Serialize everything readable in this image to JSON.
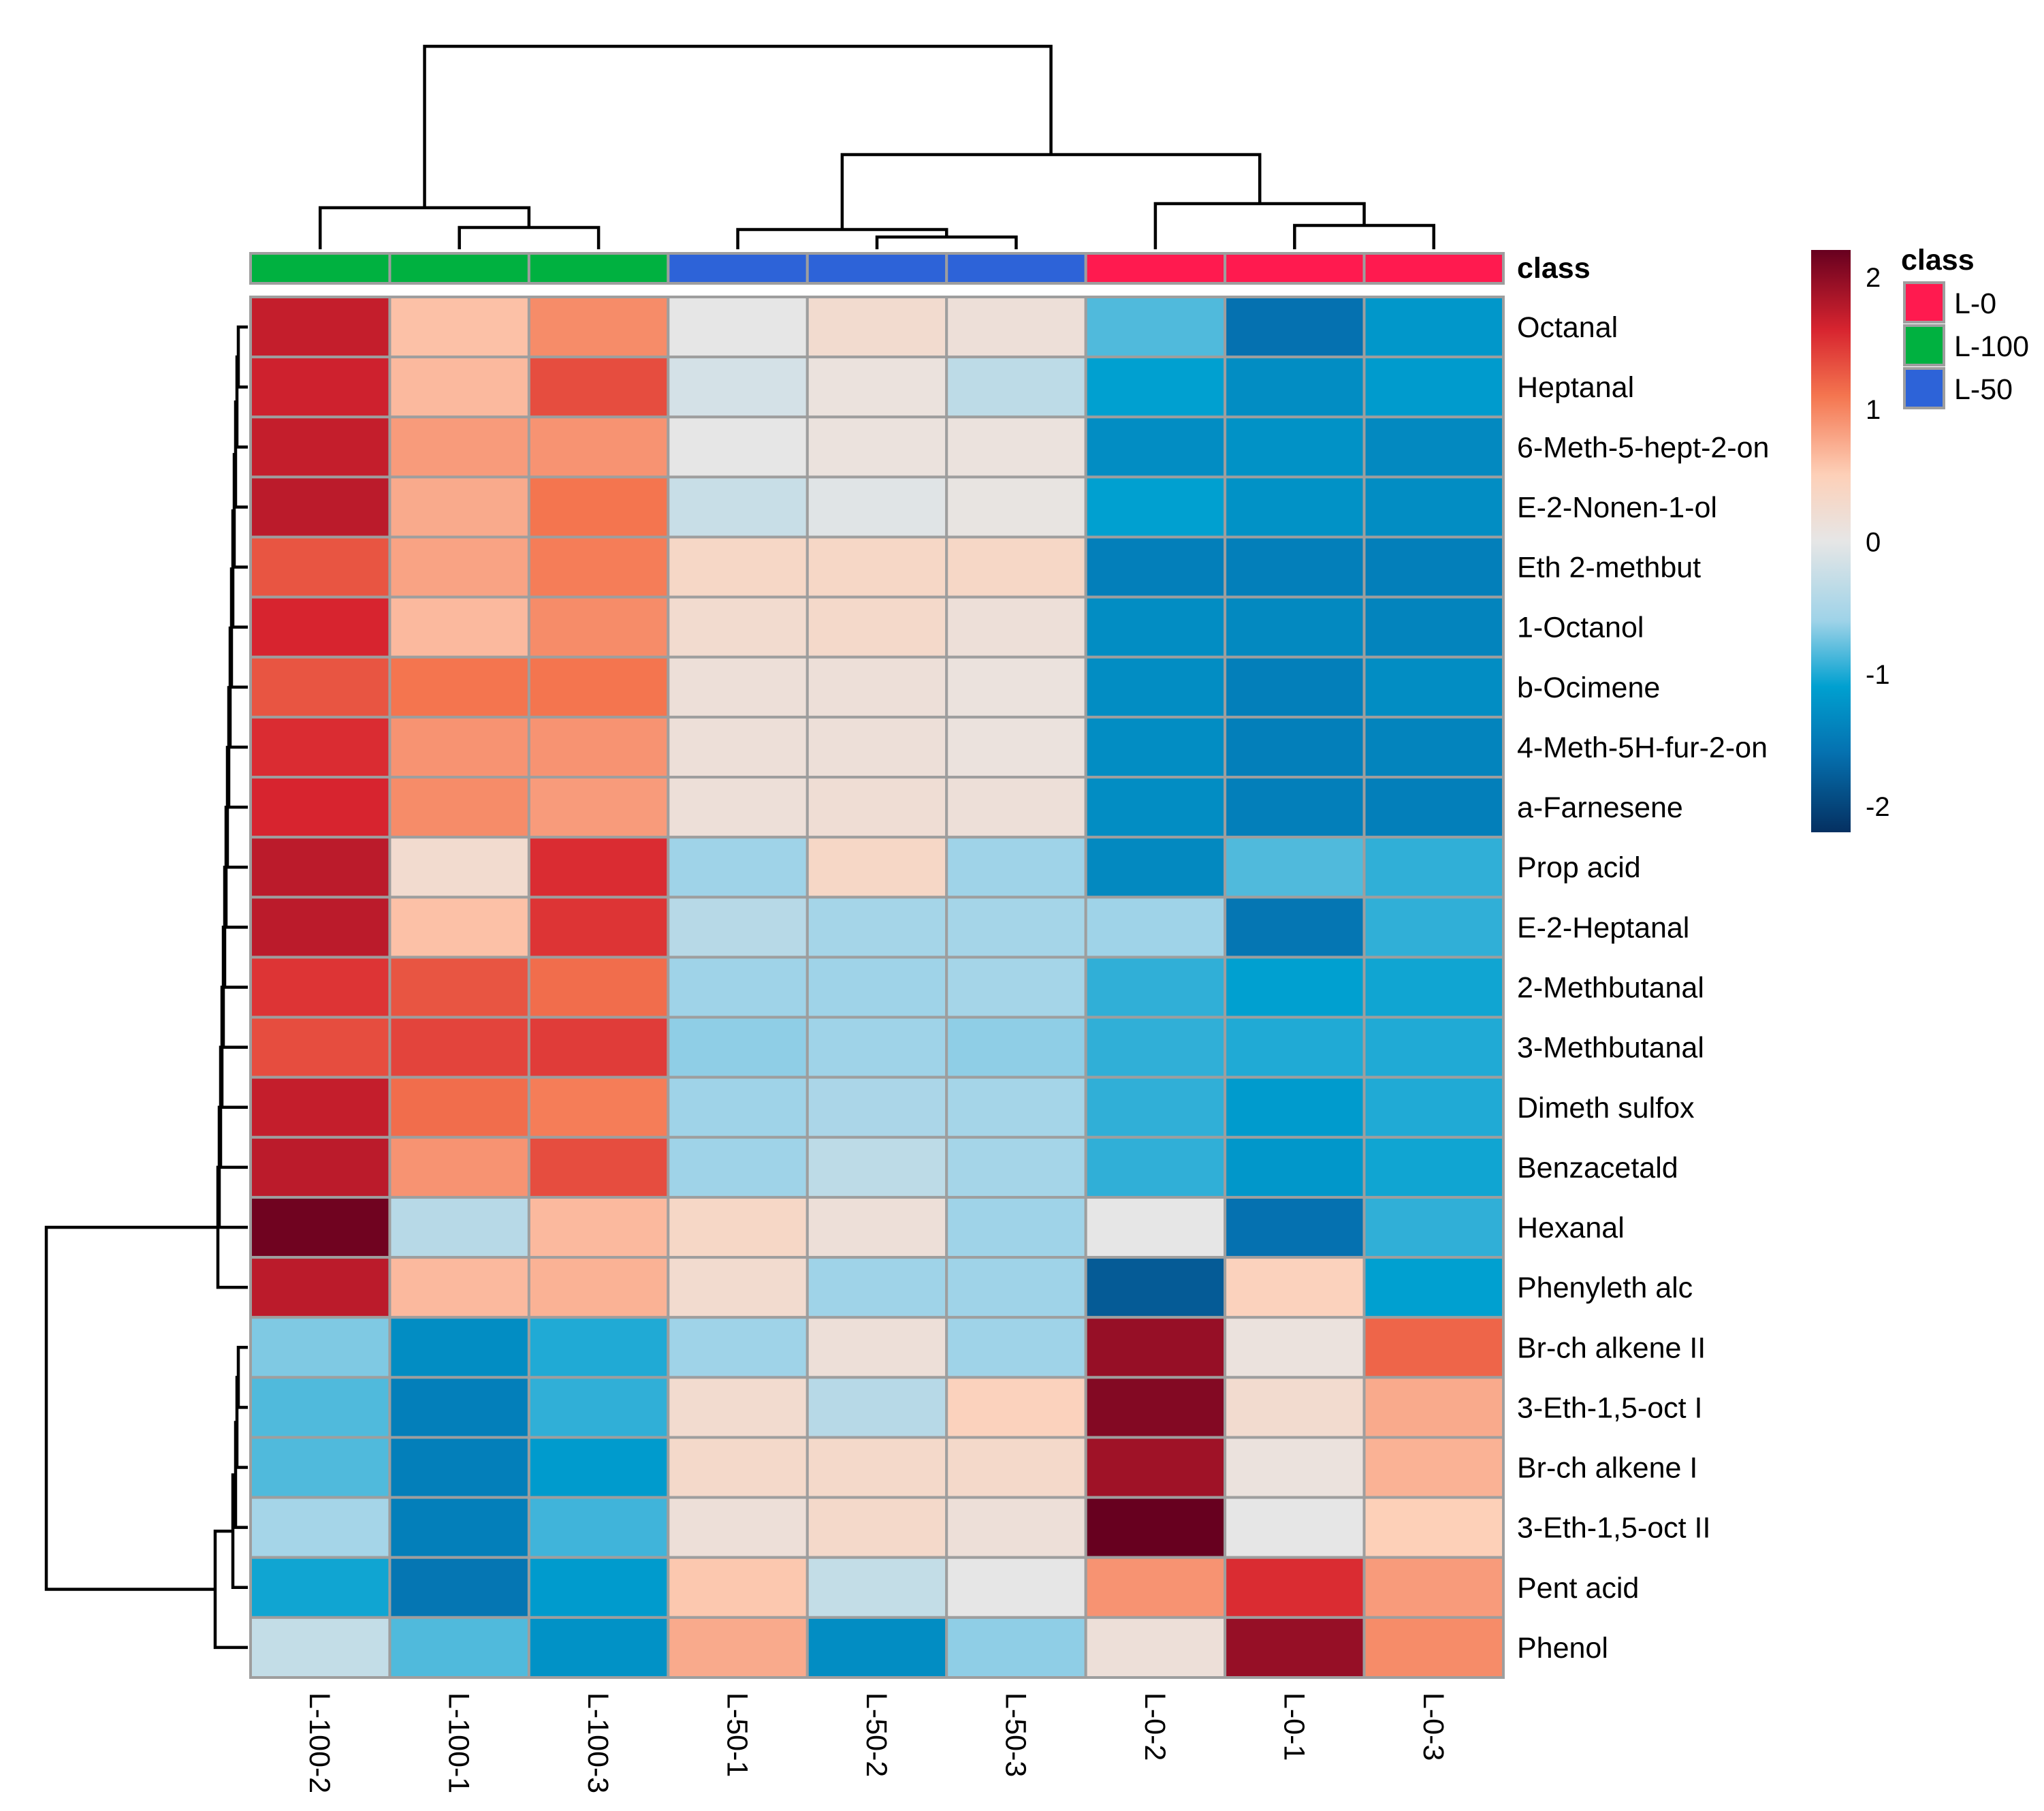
{
  "chart_data": {
    "type": "heatmap",
    "columns": [
      "L-100-2",
      "L-100-1",
      "L-100-3",
      "L-50-1",
      "L-50-2",
      "L-50-3",
      "L-0-2",
      "L-0-1",
      "L-0-3"
    ],
    "column_class": [
      "L-100",
      "L-100",
      "L-100",
      "L-50",
      "L-50",
      "L-50",
      "L-0",
      "L-0",
      "L-0"
    ],
    "rows": [
      "Octanal",
      "Heptanal",
      "6-Meth-5-hept-2-on",
      "E-2-Nonen-1-ol",
      "Eth 2-methbut",
      "1-Octanol",
      "b-Ocimene",
      "4-Meth-5H-fur-2-on",
      "a-Farnesene",
      "Prop acid",
      "E-2-Heptanal",
      "2-Methbutanal",
      "3-Methbutanal",
      "Dimeth sulfox",
      "Benzacetald",
      "Hexanal",
      "Phenyleth alc",
      "Br-ch alkene II",
      "3-Eth-1,5-oct I",
      "Br-ch alkene I",
      "3-Eth-1,5-oct II",
      "Pent acid",
      "Phenol"
    ],
    "values": [
      [
        1.7,
        0.6,
        0.95,
        0.0,
        0.25,
        0.15,
        -0.85,
        -1.6,
        -1.2
      ],
      [
        1.65,
        0.65,
        1.35,
        -0.15,
        0.1,
        -0.35,
        -1.1,
        -1.3,
        -1.15
      ],
      [
        1.7,
        0.85,
        0.9,
        0.0,
        0.1,
        0.1,
        -1.3,
        -1.25,
        -1.35
      ],
      [
        1.75,
        0.75,
        1.1,
        -0.25,
        -0.05,
        0.05,
        -1.1,
        -1.25,
        -1.3
      ],
      [
        1.3,
        0.8,
        1.05,
        0.35,
        0.35,
        0.35,
        -1.45,
        -1.45,
        -1.45
      ],
      [
        1.6,
        0.65,
        0.95,
        0.25,
        0.3,
        0.15,
        -1.3,
        -1.35,
        -1.4
      ],
      [
        1.3,
        1.1,
        1.1,
        0.15,
        0.15,
        0.1,
        -1.3,
        -1.45,
        -1.3
      ],
      [
        1.55,
        0.9,
        0.9,
        0.15,
        0.15,
        0.1,
        -1.3,
        -1.45,
        -1.4
      ],
      [
        1.6,
        0.95,
        0.85,
        0.15,
        0.2,
        0.15,
        -1.3,
        -1.45,
        -1.45
      ],
      [
        1.75,
        0.25,
        1.55,
        -0.6,
        0.35,
        -0.6,
        -1.35,
        -0.85,
        -0.95
      ],
      [
        1.75,
        0.6,
        1.5,
        -0.4,
        -0.55,
        -0.55,
        -0.6,
        -1.55,
        -0.95
      ],
      [
        1.5,
        1.3,
        1.15,
        -0.6,
        -0.6,
        -0.55,
        -0.95,
        -1.1,
        -1.05
      ],
      [
        1.35,
        1.4,
        1.45,
        -0.65,
        -0.6,
        -0.65,
        -0.95,
        -1.0,
        -1.0
      ],
      [
        1.7,
        1.15,
        1.05,
        -0.6,
        -0.5,
        -0.55,
        -0.95,
        -1.15,
        -1.0
      ],
      [
        1.75,
        0.9,
        1.35,
        -0.6,
        -0.35,
        -0.55,
        -0.95,
        -1.2,
        -1.05
      ],
      [
        2.15,
        -0.4,
        0.65,
        0.35,
        0.15,
        -0.6,
        0.0,
        -1.6,
        -0.95
      ],
      [
        1.75,
        0.65,
        0.7,
        0.25,
        -0.6,
        -0.6,
        -1.8,
        0.45,
        -1.1
      ],
      [
        -0.7,
        -1.3,
        -1.0,
        -0.6,
        0.15,
        -0.6,
        1.95,
        0.1,
        1.2
      ],
      [
        -0.85,
        -1.45,
        -0.95,
        0.25,
        -0.4,
        0.45,
        2.05,
        0.25,
        0.75
      ],
      [
        -0.85,
        -1.45,
        -1.15,
        0.3,
        0.3,
        0.3,
        1.9,
        0.1,
        0.7
      ],
      [
        -0.55,
        -1.45,
        -0.9,
        0.15,
        0.3,
        0.15,
        2.2,
        0.0,
        0.5
      ],
      [
        -1.05,
        -1.55,
        -1.15,
        0.55,
        -0.3,
        0.0,
        0.9,
        1.55,
        0.85
      ],
      [
        -0.3,
        -0.85,
        -1.25,
        0.75,
        -1.3,
        -0.65,
        0.15,
        1.95,
        0.95
      ]
    ],
    "color_scale": {
      "min": -2.2,
      "max": 2.2,
      "stops": [
        {
          "v": -2.2,
          "color": "#053061"
        },
        {
          "v": -1.6,
          "color": "#0571b0"
        },
        {
          "v": -1.1,
          "color": "#00a0d0"
        },
        {
          "v": -0.6,
          "color": "#9fd3e8"
        },
        {
          "v": 0.0,
          "color": "#e6e6e6"
        },
        {
          "v": 0.5,
          "color": "#fdd0b8"
        },
        {
          "v": 1.1,
          "color": "#f4754f"
        },
        {
          "v": 1.6,
          "color": "#d7242f"
        },
        {
          "v": 2.2,
          "color": "#67001f"
        }
      ],
      "ticks": [
        2,
        1,
        0,
        -1,
        -2
      ],
      "tick_labels": [
        "2",
        "1",
        "0",
        "-1",
        "-2"
      ]
    },
    "annotation_title": "class",
    "legend": {
      "title": "class",
      "items": [
        {
          "label": "L-0",
          "color": "#ff1a4f"
        },
        {
          "label": "L-100",
          "color": "#00b140"
        },
        {
          "label": "L-50",
          "color": "#2d63d8"
        }
      ]
    }
  }
}
